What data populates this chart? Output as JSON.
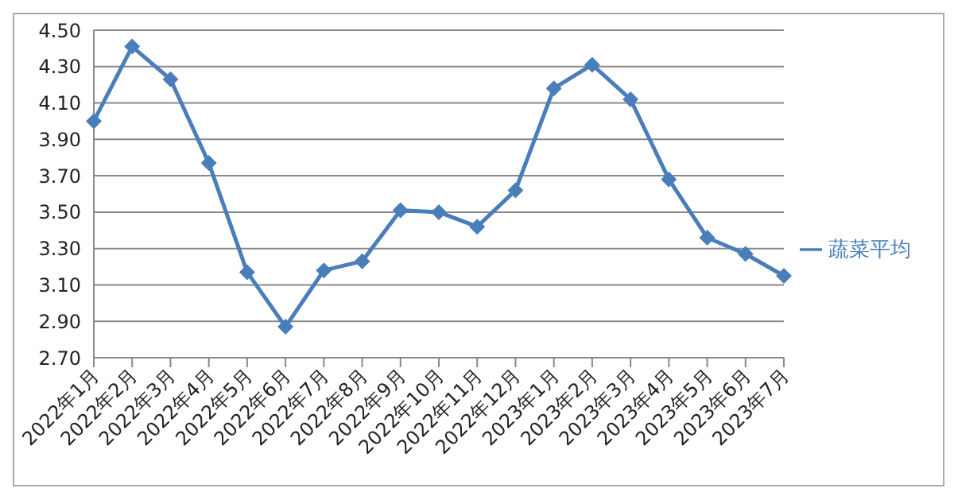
{
  "chart_data": {
    "type": "line",
    "categories": [
      "2022年1月",
      "2022年2月",
      "2022年3月",
      "2022年4月",
      "2022年5月",
      "2022年6月",
      "2022年7月",
      "2022年8月",
      "2022年9月",
      "2022年10月",
      "2022年11月",
      "2022年12月",
      "2023年1月",
      "2023年2月",
      "2023年3月",
      "2023年4月",
      "2023年5月",
      "2023年6月",
      "2023年7月"
    ],
    "series": [
      {
        "name": "蔬菜平均",
        "color": "#4a7ebb",
        "values": [
          4.0,
          4.41,
          4.23,
          3.77,
          3.17,
          2.87,
          3.18,
          3.23,
          3.51,
          3.5,
          3.42,
          3.62,
          4.18,
          4.31,
          4.12,
          3.68,
          3.36,
          3.27,
          3.15
        ]
      }
    ],
    "ylim": [
      2.7,
      4.5
    ],
    "yticks": [
      {
        "value": 2.7,
        "label": "2.70"
      },
      {
        "value": 2.9,
        "label": "2.90"
      },
      {
        "value": 3.1,
        "label": "3.10"
      },
      {
        "value": 3.3,
        "label": "3.30"
      },
      {
        "value": 3.5,
        "label": "3.50"
      },
      {
        "value": 3.7,
        "label": "3.70"
      },
      {
        "value": 3.9,
        "label": "3.90"
      },
      {
        "value": 4.1,
        "label": "4.10"
      },
      {
        "value": 4.3,
        "label": "4.30"
      },
      {
        "value": 4.5,
        "label": "4.50"
      }
    ],
    "grid": "y",
    "legend": "right",
    "marker": "diamond"
  }
}
